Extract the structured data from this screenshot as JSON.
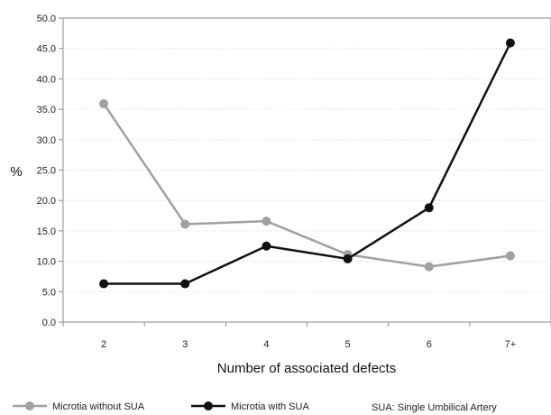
{
  "chart_data": {
    "type": "line",
    "xlabel": "Number of associated defects",
    "ylabel": "%",
    "categories": [
      "2",
      "3",
      "4",
      "5",
      "6",
      "7+"
    ],
    "ylim": [
      0,
      50
    ],
    "yticks": [
      "0.0",
      "5.0",
      "10.0",
      "15.0",
      "20.0",
      "25.0",
      "30.0",
      "35.0",
      "40.0",
      "45.0",
      "50.0"
    ],
    "grid": true,
    "legend_position": "bottom",
    "series": [
      {
        "name": "Microtia without SUA",
        "color": "#a0a0a0",
        "values": [
          35.9,
          16.1,
          16.6,
          11.1,
          9.1,
          10.9
        ]
      },
      {
        "name": "Microtia with SUA",
        "color": "#111111",
        "values": [
          6.3,
          6.3,
          12.5,
          10.4,
          18.8,
          45.9
        ]
      }
    ],
    "legend_note": "SUA: Single Umbilical Artery"
  }
}
